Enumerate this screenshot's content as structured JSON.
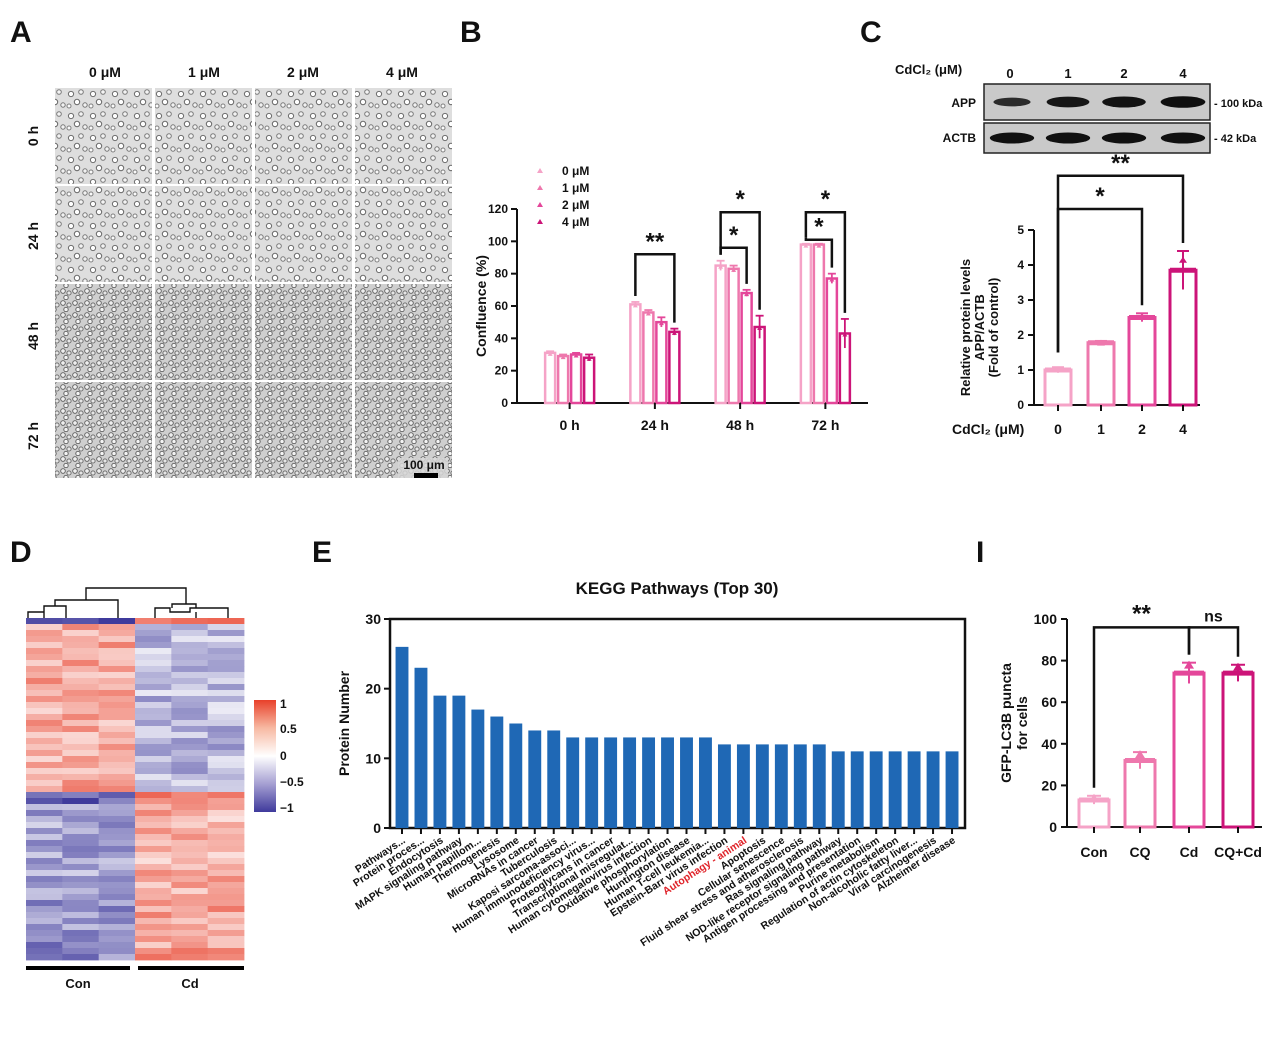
{
  "panel_labels": {
    "a": "A",
    "b": "B",
    "c": "C",
    "d": "D",
    "e": "E",
    "i": "I"
  },
  "colors": {
    "c0": "#f5a3c7",
    "c1": "#ee78ad",
    "c2": "#e4479a",
    "c3": "#cc1478",
    "blue": "#1f68b5",
    "red": "#e0232a",
    "hm_low": "#3f3a9c",
    "hm_high": "#e8402a"
  },
  "panel_a": {
    "columns": [
      "0 μM",
      "1 μM",
      "2 μM",
      "4 μM"
    ],
    "rows": [
      "0 h",
      "24 h",
      "48 h",
      "72 h"
    ],
    "scale_bar": "100 μm"
  },
  "panel_b": {
    "type": "bar",
    "categories": [
      "0 h",
      "24 h",
      "48 h",
      "72 h"
    ],
    "series": [
      {
        "name": "0 μM",
        "values": [
          31,
          61,
          85,
          98
        ],
        "err": [
          1,
          1.5,
          3,
          0.5
        ]
      },
      {
        "name": "1 μM",
        "values": [
          29,
          56,
          83,
          98
        ],
        "err": [
          1,
          1.5,
          2,
          0.5
        ]
      },
      {
        "name": "2 μM",
        "values": [
          30,
          50,
          68,
          77
        ],
        "err": [
          1,
          3,
          2,
          3
        ]
      },
      {
        "name": "4 μM",
        "values": [
          28,
          44,
          47,
          43
        ],
        "err": [
          2,
          2,
          7,
          9
        ]
      }
    ],
    "ylabel": "Confluence (%)",
    "ylim": [
      0,
      120
    ],
    "yticks": [
      "0",
      "20",
      "40",
      "60",
      "80",
      "100",
      "120"
    ],
    "significance": [
      {
        "group": "24 h",
        "from": "0 μM",
        "to": "4 μM",
        "mark": "**"
      },
      {
        "group": "48 h",
        "from": "0 μM",
        "to": "2 μM",
        "mark": "*"
      },
      {
        "group": "48 h",
        "from": "0 μM",
        "to": "4 μM",
        "mark": "*"
      },
      {
        "group": "72 h",
        "from": "0 μM",
        "to": "2 μM",
        "mark": "*"
      },
      {
        "group": "72 h",
        "from": "0 μM",
        "to": "4 μM",
        "mark": "*"
      }
    ],
    "legend": [
      "0 μM",
      "1 μM",
      "2 μM",
      "4 μM"
    ]
  },
  "panel_c": {
    "blot": {
      "header": "CdCl₂ (μM)",
      "lanes": [
        "0",
        "1",
        "2",
        "4"
      ],
      "rows": [
        {
          "name": "APP",
          "size": "- 100 kDa",
          "intensity": [
            0.45,
            0.8,
            0.85,
            0.92
          ]
        },
        {
          "name": "ACTB",
          "size": "- 42 kDa",
          "intensity": [
            0.9,
            0.9,
            0.9,
            0.9
          ]
        }
      ]
    },
    "chart": {
      "type": "bar",
      "categories": [
        "0",
        "1",
        "2",
        "4"
      ],
      "values": [
        1.0,
        1.78,
        2.5,
        3.85
      ],
      "err": [
        0.08,
        0.05,
        0.12,
        0.55
      ],
      "ylabel_lines": [
        "Relative protein levels",
        "APP/ACTB",
        "(Fold of control)"
      ],
      "xlabel": "CdCl₂ (μM)",
      "ylim": [
        0,
        5
      ],
      "yticks": [
        "0",
        "1",
        "2",
        "3",
        "4",
        "5"
      ],
      "significance": [
        {
          "from": "0",
          "to": "2",
          "mark": "*"
        },
        {
          "from": "0",
          "to": "4",
          "mark": "**"
        }
      ]
    }
  },
  "panel_d": {
    "groups": [
      "Con",
      "Cd"
    ],
    "colorbar_ticks": [
      "1",
      "0.5",
      "0",
      "−0.5",
      "−1"
    ]
  },
  "panel_e": {
    "type": "bar",
    "title": "KEGG Pathways (Top 30)",
    "ylabel": "Protein Number",
    "ylim": [
      0,
      30
    ],
    "yticks": [
      "0",
      "10",
      "20",
      "30"
    ],
    "highlight": "Autophagy - animal",
    "categories": [
      "Pathways...",
      "Protein proces...",
      "Endocytosis",
      "MAPK signaling pathway",
      "Human papillom...",
      "Thermogenesis",
      "Lysosome",
      "MicroRNAs in cancer",
      "Tuberculosis",
      "Kaposi sarcoma-associ...",
      "Human immunodeficiency virus...",
      "Proteoglycans in cancer",
      "Transcriptional misregulat...",
      "Human cytomegalovirus infection",
      "Oxidative phosphorylation",
      "Huntington disease",
      "Human T-cell leukemia...",
      "Epstein-Barr virus infection",
      "Autophagy - animal",
      "Apoptosis",
      "Cellular senescence",
      "Fluid shear stress and atherosclerosis",
      "Ras signaling pathway",
      "NOD-like receptor signaling pathway",
      "Antigen processing and presentation",
      "Purine metabolism",
      "Regulation of actin cytoskeleton",
      "Non-alcoholic fatty liver...",
      "Viral carcinogenesis",
      "Alzheimer disease"
    ],
    "values": [
      26,
      23,
      19,
      19,
      17,
      16,
      15,
      14,
      14,
      13,
      13,
      13,
      13,
      13,
      13,
      13,
      13,
      12,
      12,
      12,
      12,
      12,
      12,
      11,
      11,
      11,
      11,
      11,
      11,
      11
    ]
  },
  "panel_i": {
    "type": "bar",
    "categories": [
      "Con",
      "CQ",
      "Cd",
      "CQ+Cd"
    ],
    "values": [
      13,
      32,
      74,
      74
    ],
    "err": [
      2,
      4,
      5,
      4
    ],
    "ylabel_lines": [
      "GFP-LC3B puncta",
      "for cells"
    ],
    "ylim": [
      0,
      100
    ],
    "yticks": [
      "0",
      "20",
      "40",
      "60",
      "80",
      "100"
    ],
    "significance": [
      {
        "from": "Con",
        "to": "Cd",
        "mark": "**"
      },
      {
        "from": "Cd",
        "to": "CQ+Cd",
        "mark": "ns"
      }
    ]
  }
}
